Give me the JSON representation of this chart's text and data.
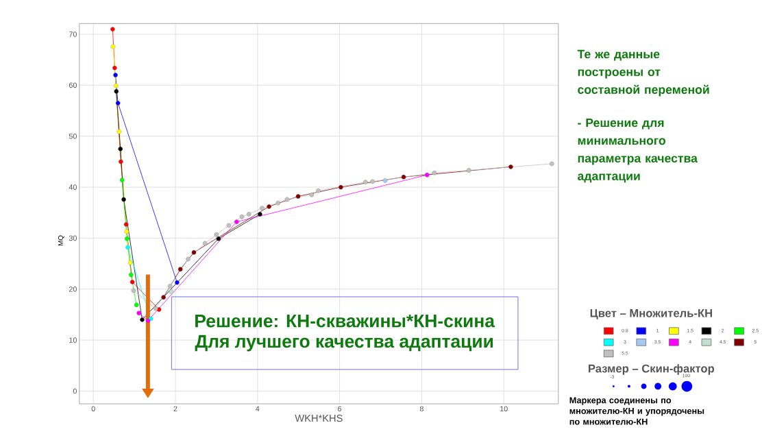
{
  "chart_data": {
    "type": "line",
    "xlabel": "WKH*KHS",
    "ylabel": "MQ",
    "legend_title": "Цвет – Множитель-КН",
    "xlim": [
      -0.34,
      11.33
    ],
    "ylim": [
      -2.5,
      72.1
    ],
    "xticks": [
      0,
      2,
      4,
      6,
      8,
      10
    ],
    "yticks": [
      0,
      10,
      20,
      30,
      40,
      50,
      60,
      70
    ],
    "grid": true,
    "legend": "right",
    "marker": "circle",
    "line_style": "solid",
    "series": [
      {
        "name": "0.8",
        "color": "#ff0000",
        "x": [
          0.47,
          0.52,
          0.67,
          0.8,
          0.95,
          1.6
        ],
        "values": [
          71.0,
          63.4,
          45.0,
          32.7,
          21.4,
          16.0
        ]
      },
      {
        "name": "1",
        "color": "#0000ff",
        "x": [
          0.54,
          0.6,
          2.04
        ],
        "values": [
          62.0,
          56.5,
          21.3
        ]
      },
      {
        "name": "1.5",
        "color": "#ffff00",
        "x": [
          0.48,
          0.55,
          0.63,
          0.81,
          0.9
        ],
        "values": [
          67.6,
          59.9,
          50.9,
          31.3,
          25.2
        ]
      },
      {
        "name": "2",
        "color": "#000000",
        "x": [
          0.56,
          0.66,
          0.74,
          1.19,
          3.05,
          4.06
        ],
        "values": [
          58.8,
          47.5,
          37.6,
          14.0,
          29.9,
          34.7
        ]
      },
      {
        "name": "2.5",
        "color": "#00ff00",
        "x": [
          0.7,
          0.82,
          0.92,
          1.05
        ],
        "values": [
          41.4,
          29.9,
          22.8,
          16.9
        ]
      },
      {
        "name": "3",
        "color": "#00ffff",
        "x": [
          0.84,
          1.4
        ],
        "values": [
          28.2,
          14.2
        ]
      },
      {
        "name": "3.5",
        "color": "#a6c8f0",
        "x": [
          7.11
        ],
        "values": [
          41.3
        ]
      },
      {
        "name": "4",
        "color": "#ff00ff",
        "x": [
          1.11,
          1.33,
          3.49,
          8.13
        ],
        "values": [
          15.3,
          13.8,
          33.2,
          42.4
        ]
      },
      {
        "name": "4.5",
        "color": "#c0e0d0",
        "x": [
          1.9
        ],
        "values": [
          19.5
        ]
      },
      {
        "name": "5",
        "color": "#800000",
        "x": [
          1.71,
          2.12,
          2.45,
          4.28,
          4.99,
          6.03,
          7.56,
          10.17
        ],
        "values": [
          18.4,
          23.9,
          27.2,
          36.2,
          38.2,
          40.0,
          42.0,
          44.0
        ]
      },
      {
        "name": "5.5",
        "color": "#c0c0c0",
        "x": [
          0.98,
          1.52,
          1.87,
          2.31,
          2.72,
          3.0,
          3.3,
          3.62,
          3.79,
          4.11,
          4.5,
          4.72,
          5.32,
          5.48,
          6.63,
          6.8,
          8.31,
          9.15,
          11.17
        ],
        "values": [
          19.7,
          16.2,
          20.6,
          25.9,
          29.0,
          30.7,
          32.5,
          34.2,
          34.7,
          35.9,
          36.9,
          37.6,
          38.5,
          39.3,
          41.0,
          41.1,
          42.8,
          43.3,
          44.6
        ]
      }
    ],
    "annotations": [
      "Те же данные построены от составной переменой",
      "- Решение для минимального параметра качества адаптации",
      "Решение: КН-скважины*КН-скина",
      "Для лучшего качества адаптации",
      "Размер – Скин-фактор",
      "-3",
      "100",
      "Маркера соединены по множителю-КН и упорядочены по множителю-КН"
    ]
  }
}
